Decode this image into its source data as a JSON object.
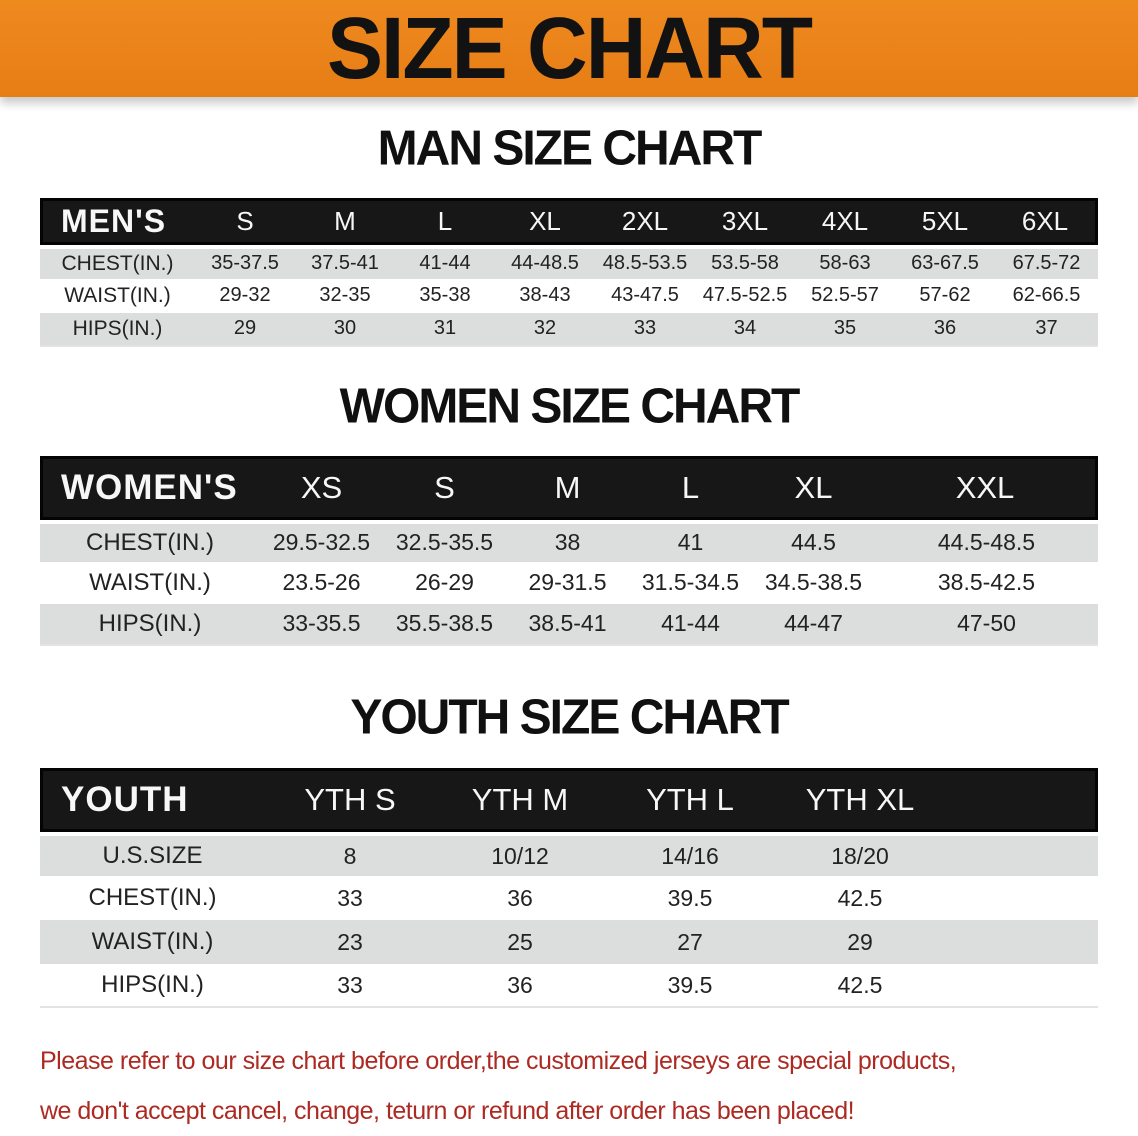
{
  "banner": {
    "title": "SIZE CHART"
  },
  "colors": {
    "banner_bg": "#EF8A1F",
    "banner_bg_dark": "#E67D15",
    "header_bg": "#171717",
    "row_alt": "#DCDDDD",
    "footer_text": "#AD2A23"
  },
  "sections": {
    "men": {
      "heading": "MAN SIZE CHART",
      "corner_label": "MEN'S",
      "columns": [
        "S",
        "M",
        "L",
        "XL",
        "2XL",
        "3XL",
        "4XL",
        "5XL",
        "6XL"
      ],
      "rows": [
        {
          "label": "CHEST(IN.)",
          "values": [
            "35-37.5",
            "37.5-41",
            "41-44",
            "44-48.5",
            "48.5-53.5",
            "53.5-58",
            "58-63",
            "63-67.5",
            "67.5-72"
          ]
        },
        {
          "label": "WAIST(IN.)",
          "values": [
            "29-32",
            "32-35",
            "35-38",
            "38-43",
            "43-47.5",
            "47.5-52.5",
            "52.5-57",
            "57-62",
            "62-66.5"
          ]
        },
        {
          "label": "HIPS(IN.)",
          "values": [
            "29",
            "30",
            "31",
            "32",
            "33",
            "34",
            "35",
            "36",
            "37"
          ]
        }
      ]
    },
    "women": {
      "heading": "WOMEN SIZE CHART",
      "corner_label": "WOMEN'S",
      "columns": [
        "XS",
        "S",
        "M",
        "L",
        "XL",
        "XXL"
      ],
      "rows": [
        {
          "label": "CHEST(IN.)",
          "values": [
            "29.5-32.5",
            "32.5-35.5",
            "38",
            "41",
            "44.5",
            "44.5-48.5"
          ]
        },
        {
          "label": "WAIST(IN.)",
          "values": [
            "23.5-26",
            "26-29",
            "29-31.5",
            "31.5-34.5",
            "34.5-38.5",
            "38.5-42.5"
          ]
        },
        {
          "label": "HIPS(IN.)",
          "values": [
            "33-35.5",
            "35.5-38.5",
            "38.5-41",
            "41-44",
            "44-47",
            "47-50"
          ]
        }
      ]
    },
    "youth": {
      "heading": "YOUTH SIZE CHART",
      "corner_label": "YOUTH",
      "columns": [
        "YTH S",
        "YTH M",
        "YTH L",
        "YTH XL"
      ],
      "rows": [
        {
          "label": "U.S.SIZE",
          "values": [
            "8",
            "10/12",
            "14/16",
            "18/20"
          ]
        },
        {
          "label": "CHEST(IN.)",
          "values": [
            "33",
            "36",
            "39.5",
            "42.5"
          ]
        },
        {
          "label": "WAIST(IN.)",
          "values": [
            "23",
            "25",
            "27",
            "29"
          ]
        },
        {
          "label": "HIPS(IN.)",
          "values": [
            "33",
            "36",
            "39.5",
            "42.5"
          ]
        }
      ]
    }
  },
  "footer": {
    "line1": "Please refer to our size chart before order,the customized jerseys are special products,",
    "line2": "we don't accept cancel, change, teturn or refund after order has been placed!"
  }
}
